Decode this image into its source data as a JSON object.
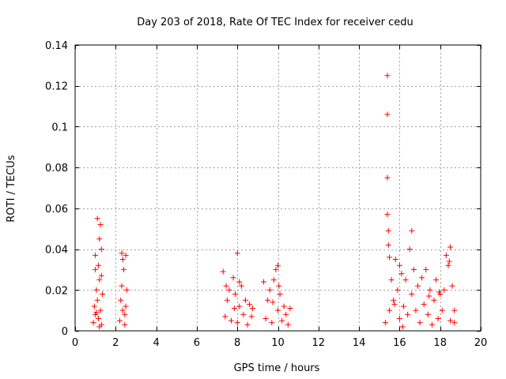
{
  "chart_data": {
    "type": "scatter",
    "title": "Day 203 of 2018, Rate Of TEC Index for receiver cedu",
    "xlabel": "GPS time / hours",
    "ylabel": "ROTI / TECUs",
    "xlim": [
      0,
      20
    ],
    "ylim": [
      0,
      0.14
    ],
    "xticks": [
      0,
      2,
      4,
      6,
      8,
      10,
      12,
      14,
      16,
      18,
      20
    ],
    "yticks": [
      0,
      0.02,
      0.04,
      0.06,
      0.08,
      0.1,
      0.12,
      0.14
    ],
    "xtick_labels": [
      "0",
      "2",
      "4",
      "6",
      "8",
      "10",
      "12",
      "14",
      "16",
      "18",
      "20"
    ],
    "ytick_labels": [
      "0",
      "0.02",
      "0.04",
      "0.06",
      "0.08",
      "0.1",
      "0.12",
      "0.14"
    ],
    "grid": true,
    "marker": "+",
    "series": [
      {
        "name": "ROTI",
        "color": "#ff0000",
        "points": [
          [
            0.9,
            0.004
          ],
          [
            0.95,
            0.012
          ],
          [
            1.0,
            0.008
          ],
          [
            1.0,
            0.03
          ],
          [
            1.05,
            0.02
          ],
          [
            1.1,
            0.055
          ],
          [
            1.1,
            0.015
          ],
          [
            1.15,
            0.006
          ],
          [
            1.2,
            0.045
          ],
          [
            1.2,
            0.025
          ],
          [
            1.25,
            0.052
          ],
          [
            1.25,
            0.01
          ],
          [
            1.3,
            0.04
          ],
          [
            1.3,
            0.003
          ],
          [
            1.35,
            0.018
          ],
          [
            1.0,
            0.037
          ],
          [
            1.15,
            0.032
          ],
          [
            1.2,
            0.002
          ],
          [
            1.05,
            0.009
          ],
          [
            1.3,
            0.027
          ],
          [
            2.2,
            0.005
          ],
          [
            2.25,
            0.015
          ],
          [
            2.3,
            0.038
          ],
          [
            2.3,
            0.022
          ],
          [
            2.35,
            0.01
          ],
          [
            2.4,
            0.03
          ],
          [
            2.45,
            0.003
          ],
          [
            2.5,
            0.037
          ],
          [
            2.5,
            0.012
          ],
          [
            2.55,
            0.02
          ],
          [
            2.35,
            0.035
          ],
          [
            2.45,
            0.008
          ],
          [
            7.3,
            0.029
          ],
          [
            7.4,
            0.007
          ],
          [
            7.5,
            0.015
          ],
          [
            7.6,
            0.02
          ],
          [
            7.7,
            0.005
          ],
          [
            7.8,
            0.026
          ],
          [
            7.85,
            0.011
          ],
          [
            7.9,
            0.018
          ],
          [
            8.0,
            0.038
          ],
          [
            8.0,
            0.004
          ],
          [
            8.1,
            0.012
          ],
          [
            8.2,
            0.022
          ],
          [
            8.3,
            0.008
          ],
          [
            8.4,
            0.015
          ],
          [
            8.5,
            0.003
          ],
          [
            8.6,
            0.013
          ],
          [
            8.7,
            0.007
          ],
          [
            8.75,
            0.011
          ],
          [
            8.1,
            0.024
          ],
          [
            7.45,
            0.022
          ],
          [
            9.3,
            0.024
          ],
          [
            9.4,
            0.006
          ],
          [
            9.5,
            0.015
          ],
          [
            9.6,
            0.02
          ],
          [
            9.7,
            0.004
          ],
          [
            9.8,
            0.025
          ],
          [
            9.9,
            0.03
          ],
          [
            10.0,
            0.032
          ],
          [
            10.0,
            0.01
          ],
          [
            10.1,
            0.018
          ],
          [
            10.2,
            0.005
          ],
          [
            10.3,
            0.012
          ],
          [
            10.4,
            0.008
          ],
          [
            10.5,
            0.003
          ],
          [
            10.6,
            0.011
          ],
          [
            9.75,
            0.014
          ],
          [
            10.05,
            0.022
          ],
          [
            15.3,
            0.004
          ],
          [
            15.4,
            0.125
          ],
          [
            15.4,
            0.106
          ],
          [
            15.4,
            0.075
          ],
          [
            15.4,
            0.057
          ],
          [
            15.45,
            0.049
          ],
          [
            15.45,
            0.042
          ],
          [
            15.5,
            0.036
          ],
          [
            15.5,
            0.01
          ],
          [
            15.6,
            0.025
          ],
          [
            15.7,
            0.015
          ],
          [
            15.8,
            0.035
          ],
          [
            15.9,
            0.02
          ],
          [
            16.0,
            0.032
          ],
          [
            16.0,
            0.006
          ],
          [
            16.1,
            0.028
          ],
          [
            16.2,
            0.012
          ],
          [
            16.3,
            0.025
          ],
          [
            16.4,
            0.008
          ],
          [
            16.5,
            0.04
          ],
          [
            16.6,
            0.049
          ],
          [
            16.6,
            0.018
          ],
          [
            16.7,
            0.03
          ],
          [
            16.8,
            0.01
          ],
          [
            16.9,
            0.022
          ],
          [
            17.0,
            0.004
          ],
          [
            17.1,
            0.026
          ],
          [
            17.2,
            0.013
          ],
          [
            17.3,
            0.03
          ],
          [
            17.4,
            0.008
          ],
          [
            17.5,
            0.02
          ],
          [
            17.6,
            0.003
          ],
          [
            17.7,
            0.015
          ],
          [
            17.8,
            0.025
          ],
          [
            17.9,
            0.006
          ],
          [
            18.0,
            0.018
          ],
          [
            18.1,
            0.01
          ],
          [
            18.2,
            0.02
          ],
          [
            18.3,
            0.037
          ],
          [
            18.4,
            0.032
          ],
          [
            18.45,
            0.034
          ],
          [
            18.5,
            0.041
          ],
          [
            18.5,
            0.005
          ],
          [
            18.6,
            0.022
          ],
          [
            18.7,
            0.01
          ],
          [
            18.7,
            0.004
          ],
          [
            16.15,
            0.002
          ],
          [
            17.45,
            0.017
          ],
          [
            15.75,
            0.013
          ],
          [
            17.95,
            0.019
          ]
        ]
      }
    ]
  }
}
